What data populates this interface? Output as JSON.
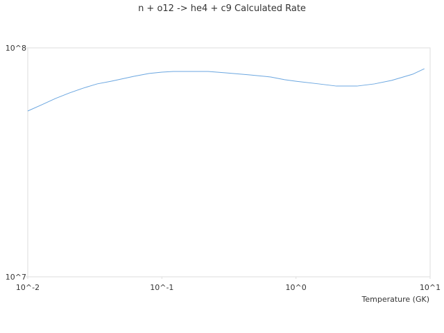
{
  "chart_data": {
    "type": "line",
    "title": "n + o12 -> he4 + c9 Calculated Rate",
    "x_label": "Temperature (GK)",
    "x": [
      0.01,
      0.0127,
      0.0161,
      0.0204,
      0.0259,
      0.0329,
      0.0418,
      0.0619,
      0.0804,
      0.1,
      0.122,
      0.221,
      0.299,
      0.454,
      0.648,
      0.823,
      1,
      1.48,
      2.0,
      2.85,
      3.84,
      5.17,
      7.4,
      9.06
    ],
    "series": [
      {
        "color": "#6aa6e0",
        "values": [
          53000000,
          56400000,
          60100000,
          63500000,
          66700000,
          69600000,
          71500000,
          75100000,
          77300000,
          78300000,
          78900000,
          78900000,
          77800000,
          76200000,
          74600000,
          72600000,
          71500000,
          69600000,
          68100000,
          68100000,
          69600000,
          72100000,
          76700000,
          81100000
        ]
      }
    ],
    "xlim": [
      0.01,
      10
    ],
    "ylim": [
      10000000,
      100000000
    ],
    "xscale": "log",
    "yscale": "log",
    "xticks": [
      {
        "value": 0.01,
        "label": "10^-2"
      },
      {
        "value": 0.1,
        "label": "10^-1"
      },
      {
        "value": 1,
        "label": "10^0"
      },
      {
        "value": 10,
        "label": "10^1"
      }
    ],
    "yticks": [
      {
        "value": 10000000,
        "label": "10^7"
      },
      {
        "value": 100000000,
        "label": "10^8"
      }
    ]
  }
}
